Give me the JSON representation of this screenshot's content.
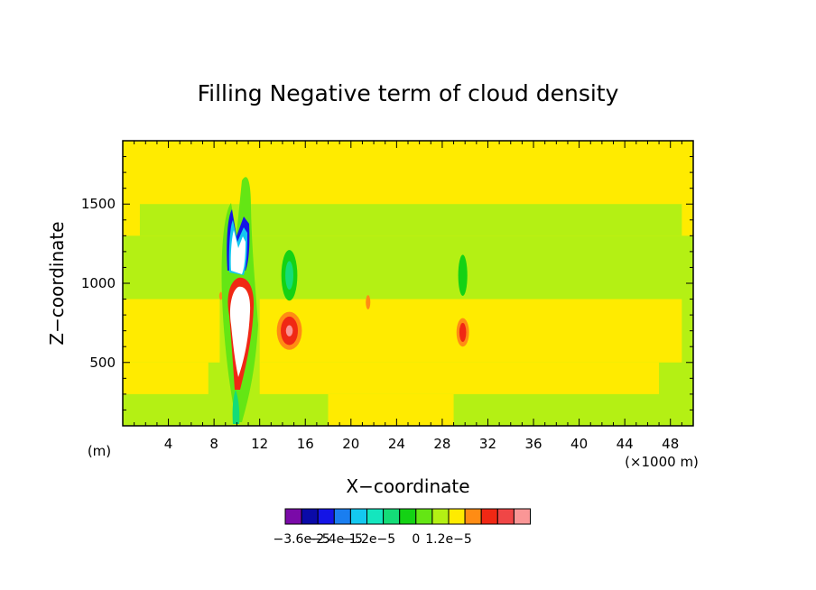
{
  "chart_data": {
    "type": "heatmap",
    "title": "Filling Negative term of cloud density",
    "xlabel": "X−coordinate",
    "ylabel": "Z−coordinate",
    "x_unit_label": "(m)",
    "x_scale_label": "(×1000 m)",
    "xlim": [
      0,
      50
    ],
    "ylim": [
      100,
      1900
    ],
    "x_ticks": [
      4,
      8,
      12,
      16,
      20,
      24,
      28,
      32,
      36,
      40,
      44,
      48
    ],
    "x_tick_labels": [
      "4",
      "8",
      "12",
      "16",
      "20",
      "24",
      "28",
      "32",
      "36",
      "40",
      "44",
      "48"
    ],
    "y_ticks": [
      500,
      1000,
      1500
    ],
    "y_tick_labels": [
      "500",
      "1000",
      "1500"
    ],
    "colorbar": {
      "colors": [
        "#7a0aa8",
        "#0a0aa8",
        "#1414e6",
        "#1a7ef0",
        "#14c8f0",
        "#14e6be",
        "#14dc78",
        "#14d214",
        "#64e614",
        "#b4f014",
        "#ffeb00",
        "#ff8c14",
        "#f02814",
        "#f04646",
        "#fa9696"
      ],
      "labels": [
        "−3.6e−5",
        "−2.4e−5",
        "−1.2e−5",
        "0",
        "1.2e−5"
      ],
      "label_positions": [
        1,
        3,
        5,
        8,
        10
      ]
    },
    "bands": [
      {
        "z": [
          100,
          1300
        ],
        "color": "#b4f014"
      },
      {
        "z": [
          1300,
          1500
        ],
        "color": "#b4f014",
        "x": [
          1.5,
          49
        ]
      },
      {
        "z": [
          300,
          500
        ],
        "color": "#ffeb00",
        "x": [
          0,
          7.5
        ]
      },
      {
        "z": [
          500,
          900
        ],
        "color": "#ffeb00",
        "x": [
          0,
          8.5
        ]
      },
      {
        "z": [
          500,
          900
        ],
        "color": "#ffeb00",
        "x": [
          12,
          49
        ]
      },
      {
        "z": [
          300,
          500
        ],
        "color": "#ffeb00",
        "x": [
          12,
          47
        ]
      },
      {
        "z": [
          100,
          300
        ],
        "color": "#ffeb00",
        "x": [
          18,
          29
        ]
      }
    ],
    "features": [
      {
        "x": 14.6,
        "z": 1050,
        "rx": 0.7,
        "rz": 160,
        "color": "#14d214"
      },
      {
        "x": 14.6,
        "z": 1050,
        "rx": 0.35,
        "rz": 90,
        "color": "#14dc78"
      },
      {
        "x": 29.8,
        "z": 1050,
        "rx": 0.4,
        "rz": 130,
        "color": "#14d214"
      },
      {
        "x": 14.6,
        "z": 700,
        "rx": 1.1,
        "rz": 120,
        "color": "#ff8c14"
      },
      {
        "x": 14.6,
        "z": 700,
        "rx": 0.75,
        "rz": 90,
        "color": "#f02814"
      },
      {
        "x": 14.6,
        "z": 700,
        "rx": 0.3,
        "rz": 35,
        "color": "#fa9696"
      },
      {
        "x": 29.8,
        "z": 690,
        "rx": 0.55,
        "rz": 90,
        "color": "#ff8c14"
      },
      {
        "x": 29.8,
        "z": 690,
        "rx": 0.3,
        "rz": 60,
        "color": "#f02814"
      },
      {
        "x": 21.5,
        "z": 880,
        "rx": 0.2,
        "rz": 45,
        "color": "#ff8c14"
      },
      {
        "x": 8.6,
        "z": 920,
        "rx": 0.15,
        "rz": 25,
        "color": "#ff8c14"
      }
    ]
  }
}
